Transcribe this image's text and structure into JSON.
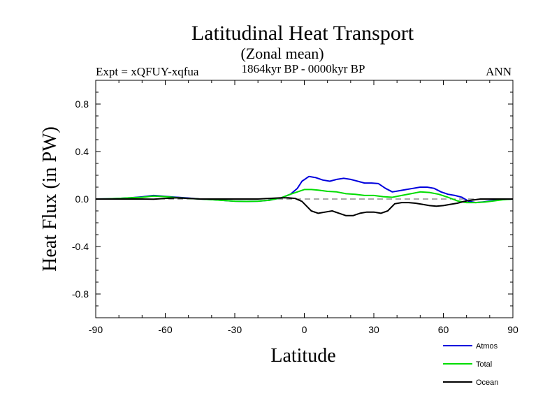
{
  "chart_data": {
    "type": "line",
    "title": "Latitudinal Heat Transport",
    "subtitle": "(Zonal mean)",
    "left_label": "Expt = xQFUY-xqfua",
    "center_label": "1864kyr BP - 0000kyr BP",
    "right_label": "ANN",
    "xlabel": "Latitude",
    "ylabel": "Heat Flux (in PW)",
    "xlim": [
      -90,
      90
    ],
    "ylim": [
      -1.0,
      1.0
    ],
    "xticks": [
      -90,
      -60,
      -30,
      0,
      30,
      60,
      90
    ],
    "xtick_labels": [
      "-90",
      "-60",
      "-30",
      "0",
      "30",
      "60",
      "90"
    ],
    "yticks": [
      0.8,
      0.4,
      0.0,
      -0.4,
      -0.8
    ],
    "ytick_labels": [
      "0.8",
      "0.4",
      "0.0",
      "-0.4",
      "-0.8"
    ],
    "zero_line": "dashed",
    "legend_position": "bottom-right",
    "series": [
      {
        "name": "Atmos",
        "color": "#0000dd",
        "x": [
          -90,
          -85,
          -80,
          -75,
          -70,
          -65,
          -60,
          -55,
          -50,
          -45,
          -40,
          -35,
          -30,
          -25,
          -20,
          -15,
          -10,
          -6,
          -3,
          -1,
          2,
          5,
          8,
          11,
          14,
          17,
          20,
          23,
          26,
          29,
          32,
          35,
          38,
          41,
          44,
          47,
          50,
          53,
          56,
          59,
          62,
          65,
          68,
          71,
          74,
          77,
          80,
          85,
          90
        ],
        "values": [
          0.0,
          0.002,
          0.005,
          0.01,
          0.018,
          0.03,
          0.022,
          0.015,
          0.008,
          0.0,
          -0.005,
          -0.012,
          -0.018,
          -0.02,
          -0.018,
          -0.01,
          0.01,
          0.04,
          0.09,
          0.15,
          0.19,
          0.18,
          0.16,
          0.15,
          0.165,
          0.175,
          0.165,
          0.15,
          0.135,
          0.135,
          0.13,
          0.09,
          0.06,
          0.07,
          0.08,
          0.09,
          0.1,
          0.1,
          0.09,
          0.06,
          0.04,
          0.03,
          0.015,
          -0.02,
          -0.03,
          -0.025,
          -0.015,
          -0.005,
          0.0
        ]
      },
      {
        "name": "Total",
        "color": "#00dd00",
        "x": [
          -90,
          -85,
          -80,
          -75,
          -70,
          -65,
          -60,
          -55,
          -50,
          -45,
          -40,
          -35,
          -30,
          -25,
          -20,
          -15,
          -10,
          -6,
          -3,
          0,
          3,
          6,
          10,
          14,
          18,
          22,
          26,
          30,
          34,
          38,
          42,
          46,
          50,
          54,
          58,
          62,
          66,
          70,
          74,
          78,
          82,
          86,
          90
        ],
        "values": [
          0.0,
          0.002,
          0.005,
          0.01,
          0.015,
          0.025,
          0.02,
          0.012,
          0.005,
          0.0,
          -0.005,
          -0.012,
          -0.018,
          -0.02,
          -0.018,
          -0.01,
          0.01,
          0.04,
          0.06,
          0.08,
          0.08,
          0.075,
          0.065,
          0.06,
          0.045,
          0.04,
          0.03,
          0.03,
          0.02,
          0.015,
          0.03,
          0.045,
          0.06,
          0.055,
          0.04,
          0.015,
          -0.015,
          -0.03,
          -0.03,
          -0.025,
          -0.015,
          -0.005,
          0.0
        ]
      },
      {
        "name": "Ocean",
        "color": "#000000",
        "x": [
          -90,
          -80,
          -70,
          -65,
          -60,
          -55,
          -50,
          -45,
          -40,
          -35,
          -30,
          -25,
          -20,
          -15,
          -10,
          -7,
          -4,
          -1,
          1,
          3,
          6,
          9,
          12,
          15,
          18,
          21,
          24,
          27,
          30,
          33,
          36,
          39,
          42,
          45,
          48,
          51,
          54,
          57,
          60,
          63,
          66,
          69,
          72,
          76,
          80,
          85,
          90
        ],
        "values": [
          0.0,
          0.0,
          0.0,
          -0.002,
          0.005,
          0.01,
          0.005,
          0.0,
          0.0,
          0.0,
          0.0,
          0.0,
          0.0,
          0.005,
          0.01,
          0.01,
          0.005,
          -0.02,
          -0.06,
          -0.1,
          -0.12,
          -0.11,
          -0.1,
          -0.12,
          -0.14,
          -0.14,
          -0.12,
          -0.11,
          -0.11,
          -0.12,
          -0.1,
          -0.04,
          -0.03,
          -0.03,
          -0.035,
          -0.045,
          -0.055,
          -0.06,
          -0.055,
          -0.045,
          -0.035,
          -0.02,
          -0.01,
          0.0,
          0.0,
          0.0,
          0.0
        ]
      }
    ]
  }
}
